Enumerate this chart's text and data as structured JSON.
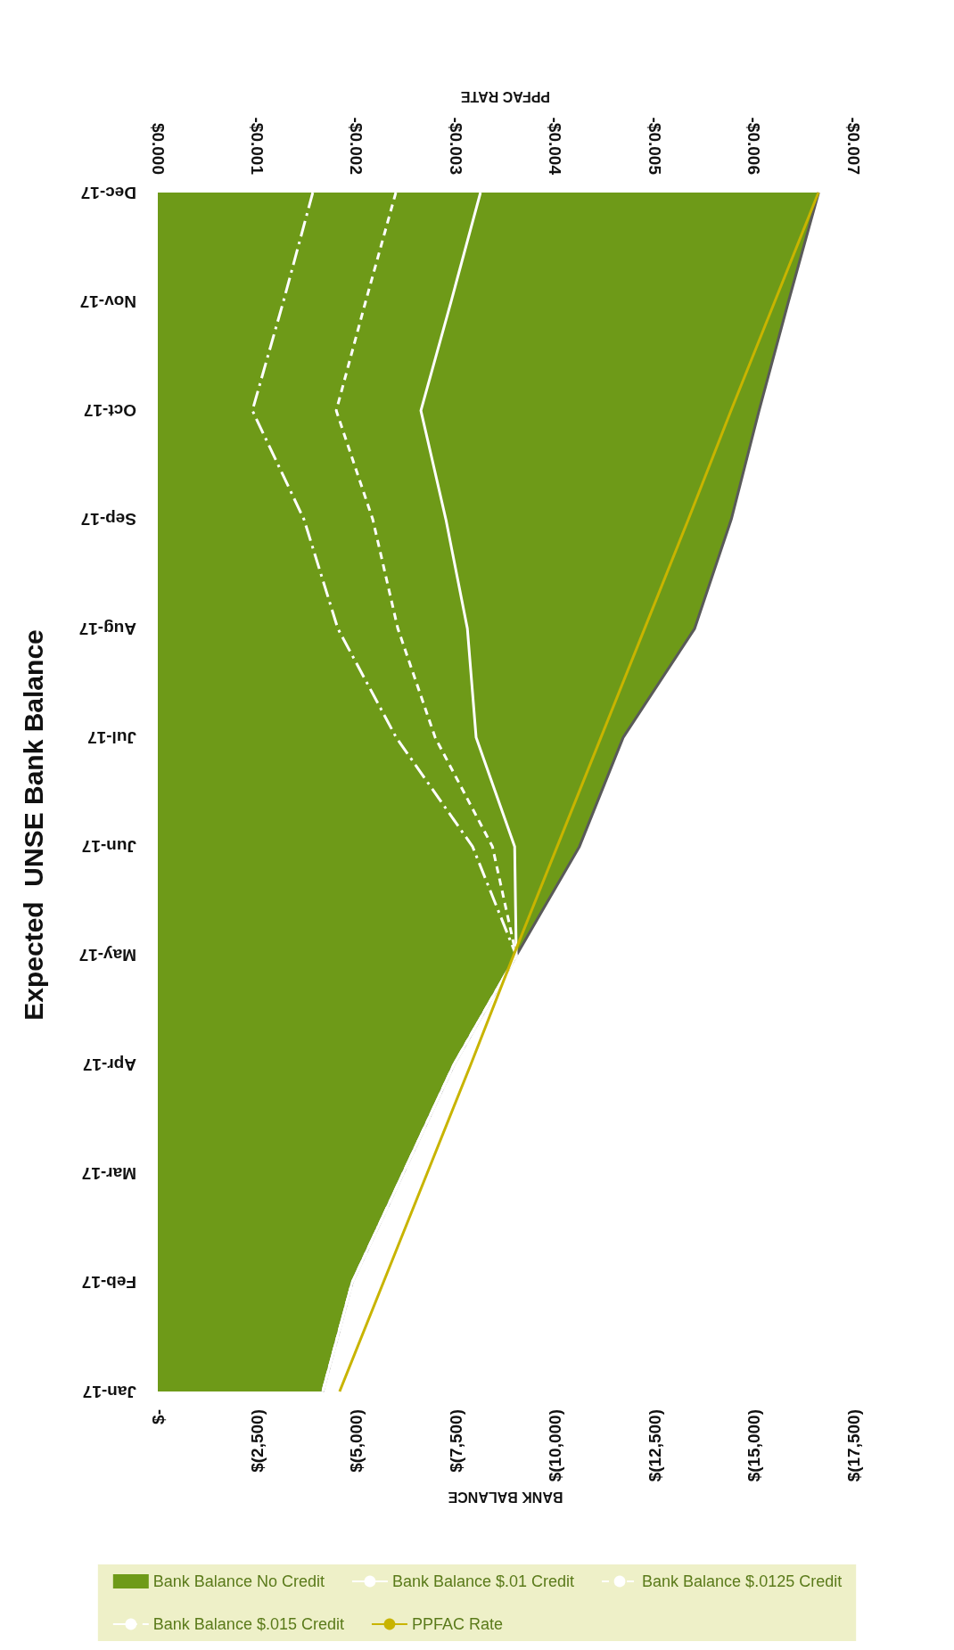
{
  "chart_data": {
    "type": "area",
    "orientation": "horizontal",
    "title": "Expected  UNSE Bank Balance",
    "xlabel": "BANK BALANCE",
    "x2label": "PPFAC RATE",
    "categories": [
      "Dec-17",
      "Nov-17",
      "Oct-17",
      "Sep-17",
      "Aug-17",
      "Jul-17",
      "Jun-17",
      "May-17",
      "Apr-17",
      "Mar-17",
      "Feb-17",
      "Jan-17"
    ],
    "series": [
      {
        "name": "Bank Balance No Credit",
        "color": "#6e9a18",
        "values": [
          -16630,
          -15870,
          -15130,
          -14430,
          -13510,
          -11710,
          -10610,
          -9020,
          -7450,
          -6170,
          -4890,
          -4150
        ]
      },
      {
        "name": "Bank Balance $.01 Credit",
        "type": "line",
        "color": "#ffffff",
        "line_style": "solid",
        "values": [
          -8120,
          -7380,
          -6620,
          -7250,
          -7790,
          -8010,
          -8980,
          -9020,
          -7450,
          -6170,
          -4890,
          -4150
        ]
      },
      {
        "name": "Bank Balance $.0125 Credit",
        "type": "line",
        "color": "#ffffff",
        "line_style": "dashed",
        "values": [
          -5990,
          -5230,
          -4490,
          -5410,
          -6040,
          -6980,
          -8420,
          -9020,
          -7450,
          -6170,
          -4890,
          -4150
        ]
      },
      {
        "name": "Bank Balance $.015 Credit",
        "type": "line",
        "color": "#ffffff",
        "line_style": "dashdot",
        "values": [
          -3900,
          -3160,
          -2380,
          -3680,
          -4530,
          -6000,
          -7920,
          -9020,
          -7450,
          -6170,
          -4890,
          -4150
        ]
      },
      {
        "name": "PPFAC Rate",
        "type": "line",
        "axis": "x2",
        "color": "#c8b400",
        "line_style": "solid",
        "values": [
          -0.00665,
          -0.00621,
          -0.00577,
          -0.00534,
          -0.0049,
          -0.00446,
          -0.00402,
          -0.00358,
          -0.00315,
          -0.00271,
          -0.00227,
          -0.00183
        ]
      }
    ],
    "xlim": [
      0,
      -17500
    ],
    "xticks": [
      {
        "value": 0,
        "label": "$-"
      },
      {
        "value": -2500,
        "label": "$(2,500)"
      },
      {
        "value": -5000,
        "label": "$(5,000)"
      },
      {
        "value": -7500,
        "label": "$(7,500)"
      },
      {
        "value": -10000,
        "label": "$(10,000)"
      },
      {
        "value": -12500,
        "label": "$(12,500)"
      },
      {
        "value": -15000,
        "label": "$(15,000)"
      },
      {
        "value": -17500,
        "label": "$(17,500)"
      }
    ],
    "x2lim": [
      0,
      -0.007
    ],
    "x2ticks": [
      {
        "value": 0,
        "label": "$0.000"
      },
      {
        "value": -0.001,
        "label": "-$0.001"
      },
      {
        "value": -0.002,
        "label": "-$0.002"
      },
      {
        "value": -0.003,
        "label": "-$0.003"
      },
      {
        "value": -0.004,
        "label": "-$0.004"
      },
      {
        "value": -0.005,
        "label": "-$0.005"
      },
      {
        "value": -0.006,
        "label": "-$0.006"
      },
      {
        "value": -0.007,
        "label": "-$0.007"
      }
    ],
    "grid": false,
    "legend": "bottom",
    "marker": "none"
  }
}
